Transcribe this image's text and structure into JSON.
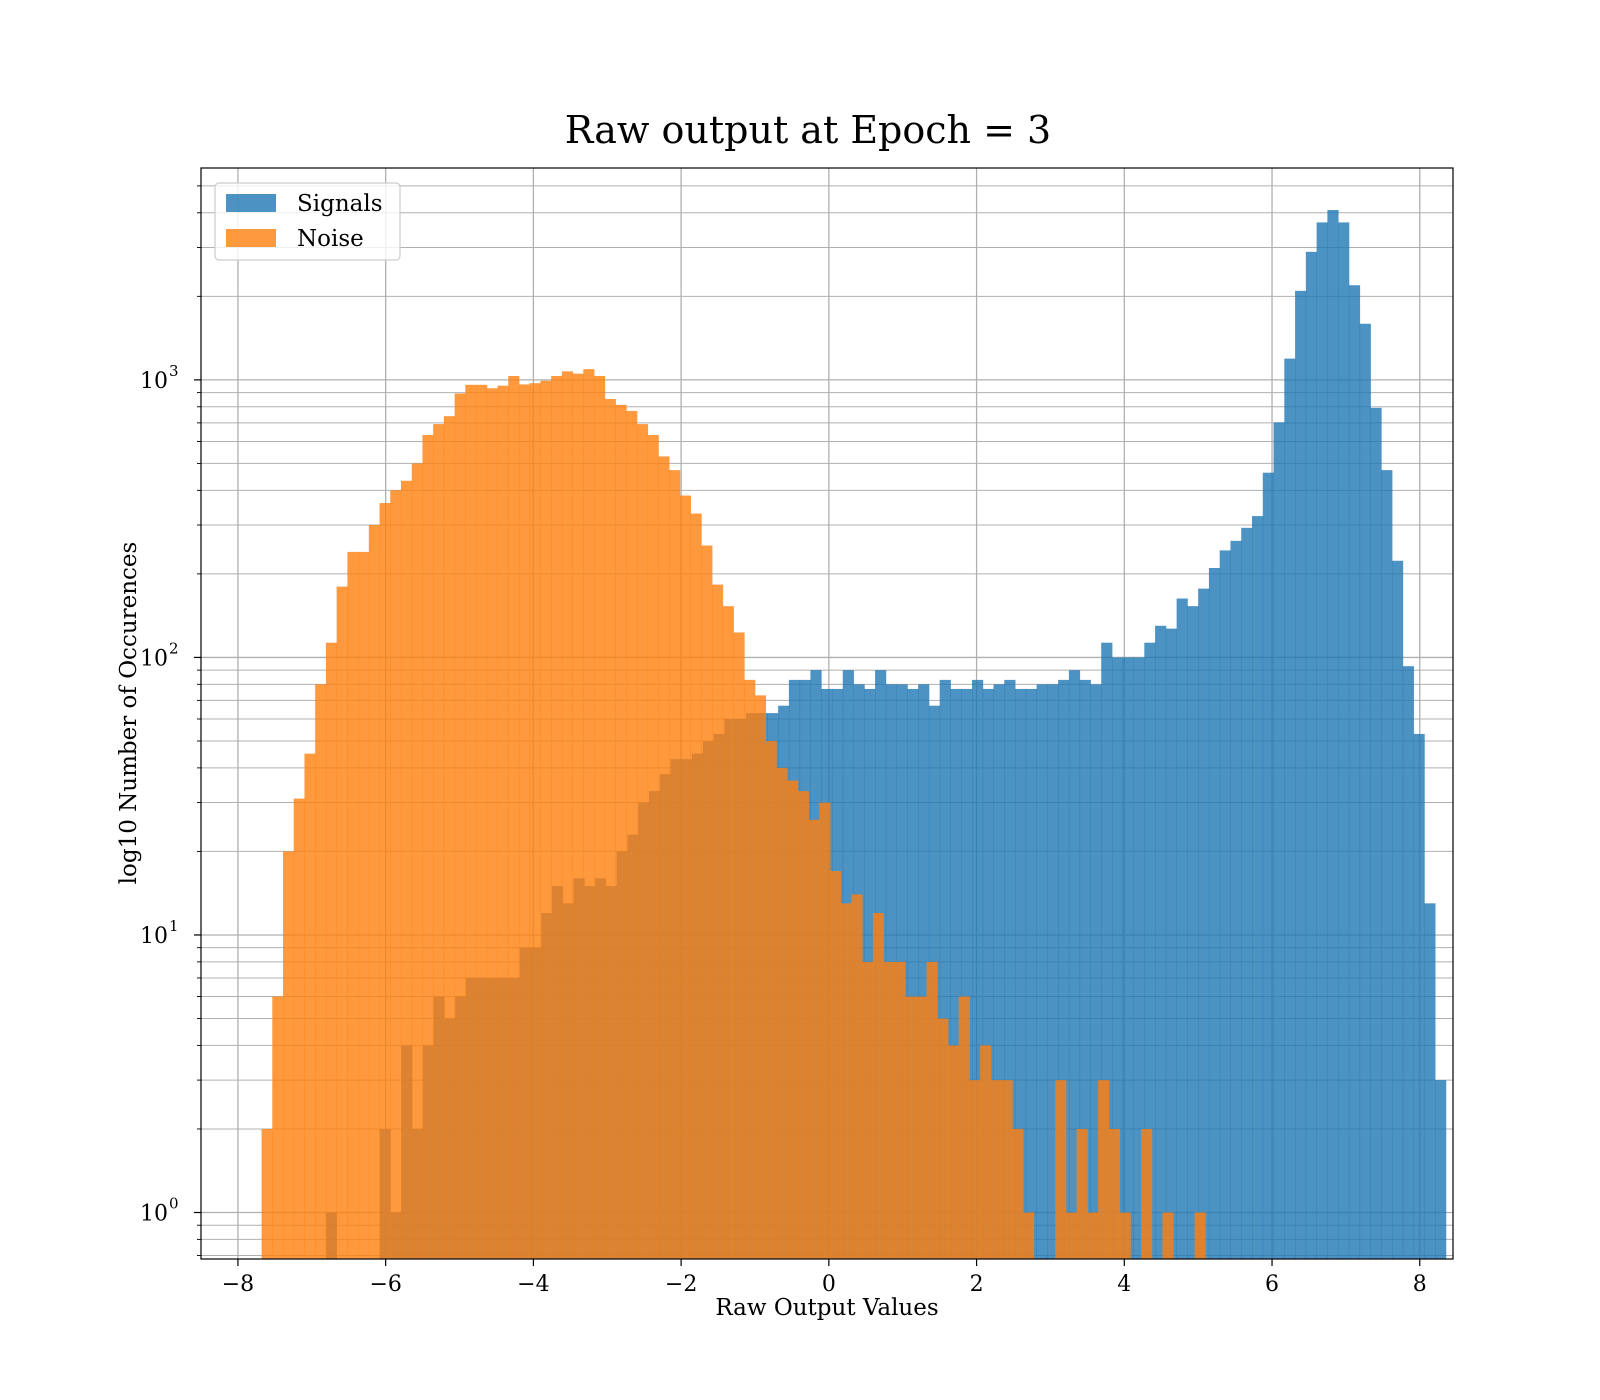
{
  "chart_data": {
    "type": "histogram",
    "title": "Raw output at Epoch = 3",
    "xlabel": "Raw Output Values",
    "ylabel": "log10 Number of Occurences",
    "xlim": [
      -8.5,
      8.45
    ],
    "ylim": [
      0.68,
      5800
    ],
    "yscale": "log",
    "grid": "major and minor",
    "legend_position": "top-left",
    "xticks": [
      -8,
      -6,
      -4,
      -2,
      0,
      2,
      4,
      6,
      8
    ],
    "xtick_labels": [
      "−8",
      "−6",
      "−4",
      "−2",
      "0",
      "2",
      "4",
      "6",
      "8"
    ],
    "yticks": [
      {
        "value": 1,
        "base": "10",
        "exp": "0"
      },
      {
        "value": 10,
        "base": "10",
        "exp": "1"
      },
      {
        "value": 100,
        "base": "10",
        "exp": "2"
      },
      {
        "value": 1000,
        "base": "10",
        "exp": "3"
      }
    ],
    "series": [
      {
        "name": "Signals",
        "color": "#1f77b4",
        "opacity": 0.8,
        "x_start": -6.81,
        "bin_width": 0.1458,
        "counts": [
          1,
          0,
          0,
          0,
          0,
          2,
          1,
          4,
          2,
          4,
          6,
          5,
          6,
          7,
          7,
          7,
          7,
          7,
          9,
          9,
          12,
          15,
          13,
          16,
          15,
          16,
          15,
          20,
          23,
          30,
          33,
          38,
          43,
          43,
          45,
          50,
          53,
          60,
          60,
          63,
          63,
          63,
          67,
          83,
          83,
          90,
          77,
          77,
          90,
          80,
          77,
          90,
          80,
          80,
          77,
          80,
          67,
          83,
          77,
          77,
          83,
          77,
          80,
          83,
          77,
          77,
          80,
          80,
          83,
          90,
          83,
          80,
          113,
          100,
          100,
          100,
          113,
          130,
          127,
          163,
          153,
          177,
          210,
          243,
          263,
          293,
          323,
          463,
          703,
          1193,
          2093,
          2893,
          3693,
          4093,
          3693,
          2193,
          1593,
          793,
          473,
          223,
          93,
          53,
          13,
          3
        ]
      },
      {
        "name": "Noise",
        "color": "#ff7f0e",
        "opacity": 0.8,
        "x_start": -7.68,
        "bin_width": 0.1452,
        "counts": [
          2,
          6,
          20,
          31,
          45,
          80,
          113,
          180,
          240,
          240,
          300,
          360,
          400,
          433,
          500,
          633,
          693,
          740,
          893,
          960,
          960,
          933,
          953,
          1033,
          963,
          973,
          993,
          1033,
          1073,
          1053,
          1093,
          1033,
          853,
          813,
          773,
          693,
          633,
          530,
          473,
          383,
          330,
          253,
          183,
          153,
          123,
          83,
          73,
          50,
          40,
          36,
          33,
          26,
          30,
          17,
          13,
          14,
          8,
          12,
          8,
          8,
          6,
          6,
          8,
          5,
          4,
          6,
          3,
          4,
          3,
          3,
          2,
          1,
          0,
          0,
          3,
          1,
          2,
          1,
          3,
          2,
          1,
          0,
          2,
          0,
          1,
          0,
          0,
          1,
          0,
          0,
          0
        ]
      }
    ]
  }
}
